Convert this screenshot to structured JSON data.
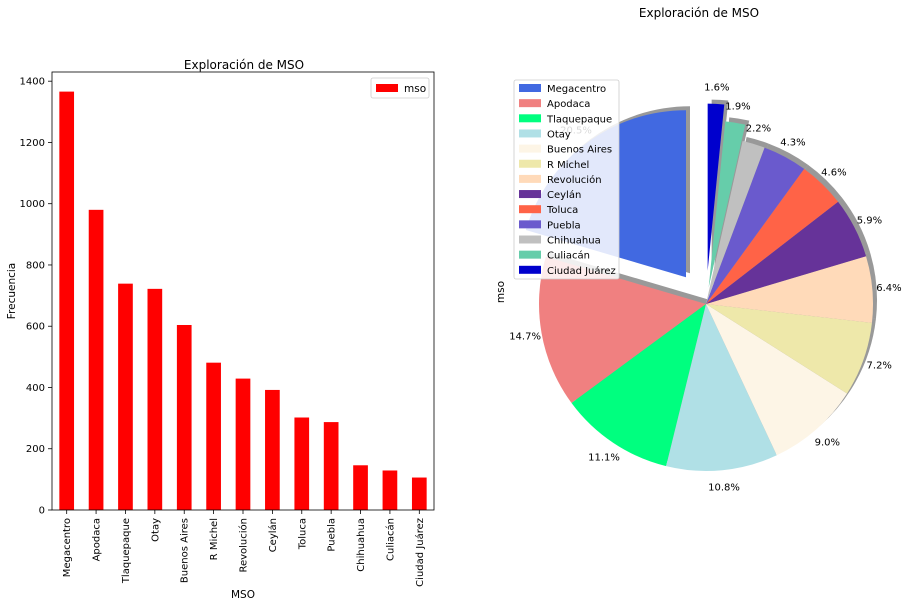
{
  "chart_data": [
    {
      "type": "bar",
      "title": "Exploración de MSO",
      "xlabel": "MSO",
      "ylabel": "Frecuencia",
      "ylim": [
        0,
        1430
      ],
      "yticks": [
        0,
        200,
        400,
        600,
        800,
        1000,
        1200,
        1400
      ],
      "grid": false,
      "legend_position": "top-right",
      "categories": [
        "Megacentro",
        "Apodaca",
        "Tlaquepaque",
        "Otay",
        "Buenos Aires",
        "R Michel",
        "Revolución",
        "Ceylán",
        "Toluca",
        "Puebla",
        "Chihuahua",
        "Culiacán",
        "Ciudad Juárez"
      ],
      "series": [
        {
          "name": "mso",
          "color": "#ff0000",
          "values": [
            1366,
            980,
            739,
            722,
            604,
            481,
            429,
            392,
            302,
            287,
            146,
            129,
            106
          ]
        }
      ]
    },
    {
      "type": "pie",
      "title": "Exploración de MSO",
      "ylabel": "mso",
      "legend_position": "upper-left",
      "shadow": true,
      "labels": [
        "Megacentro",
        "Apodaca",
        "Tlaquepaque",
        "Otay",
        "Buenos Aires",
        "R Michel",
        "Revolución",
        "Ceylán",
        "Toluca",
        "Puebla",
        "Chihuahua",
        "Culiacán",
        "Ciudad Juárez"
      ],
      "values": [
        1366,
        980,
        739,
        722,
        604,
        481,
        429,
        392,
        302,
        287,
        146,
        129,
        106
      ],
      "pct_labels": [
        "20.5%",
        "14.7%",
        "11.1%",
        "10.8%",
        "9.0%",
        "7.2%",
        "6.4%",
        "5.9%",
        "4.6%",
        "4.3%",
        "2.2%",
        "1.9%",
        "1.6%"
      ],
      "explode": [
        0.2,
        0,
        0,
        0,
        0,
        0,
        0,
        0,
        0,
        0,
        0,
        0.1,
        0.2
      ],
      "colors": [
        "#4169e1",
        "#f08080",
        "#00ff7f",
        "#b0e0e6",
        "#fdf5e6",
        "#eee8aa",
        "#ffdab9",
        "#663399",
        "#ff6347",
        "#6a5acd",
        "#c0c0c0",
        "#66cdaa",
        "#0000cd"
      ]
    }
  ]
}
